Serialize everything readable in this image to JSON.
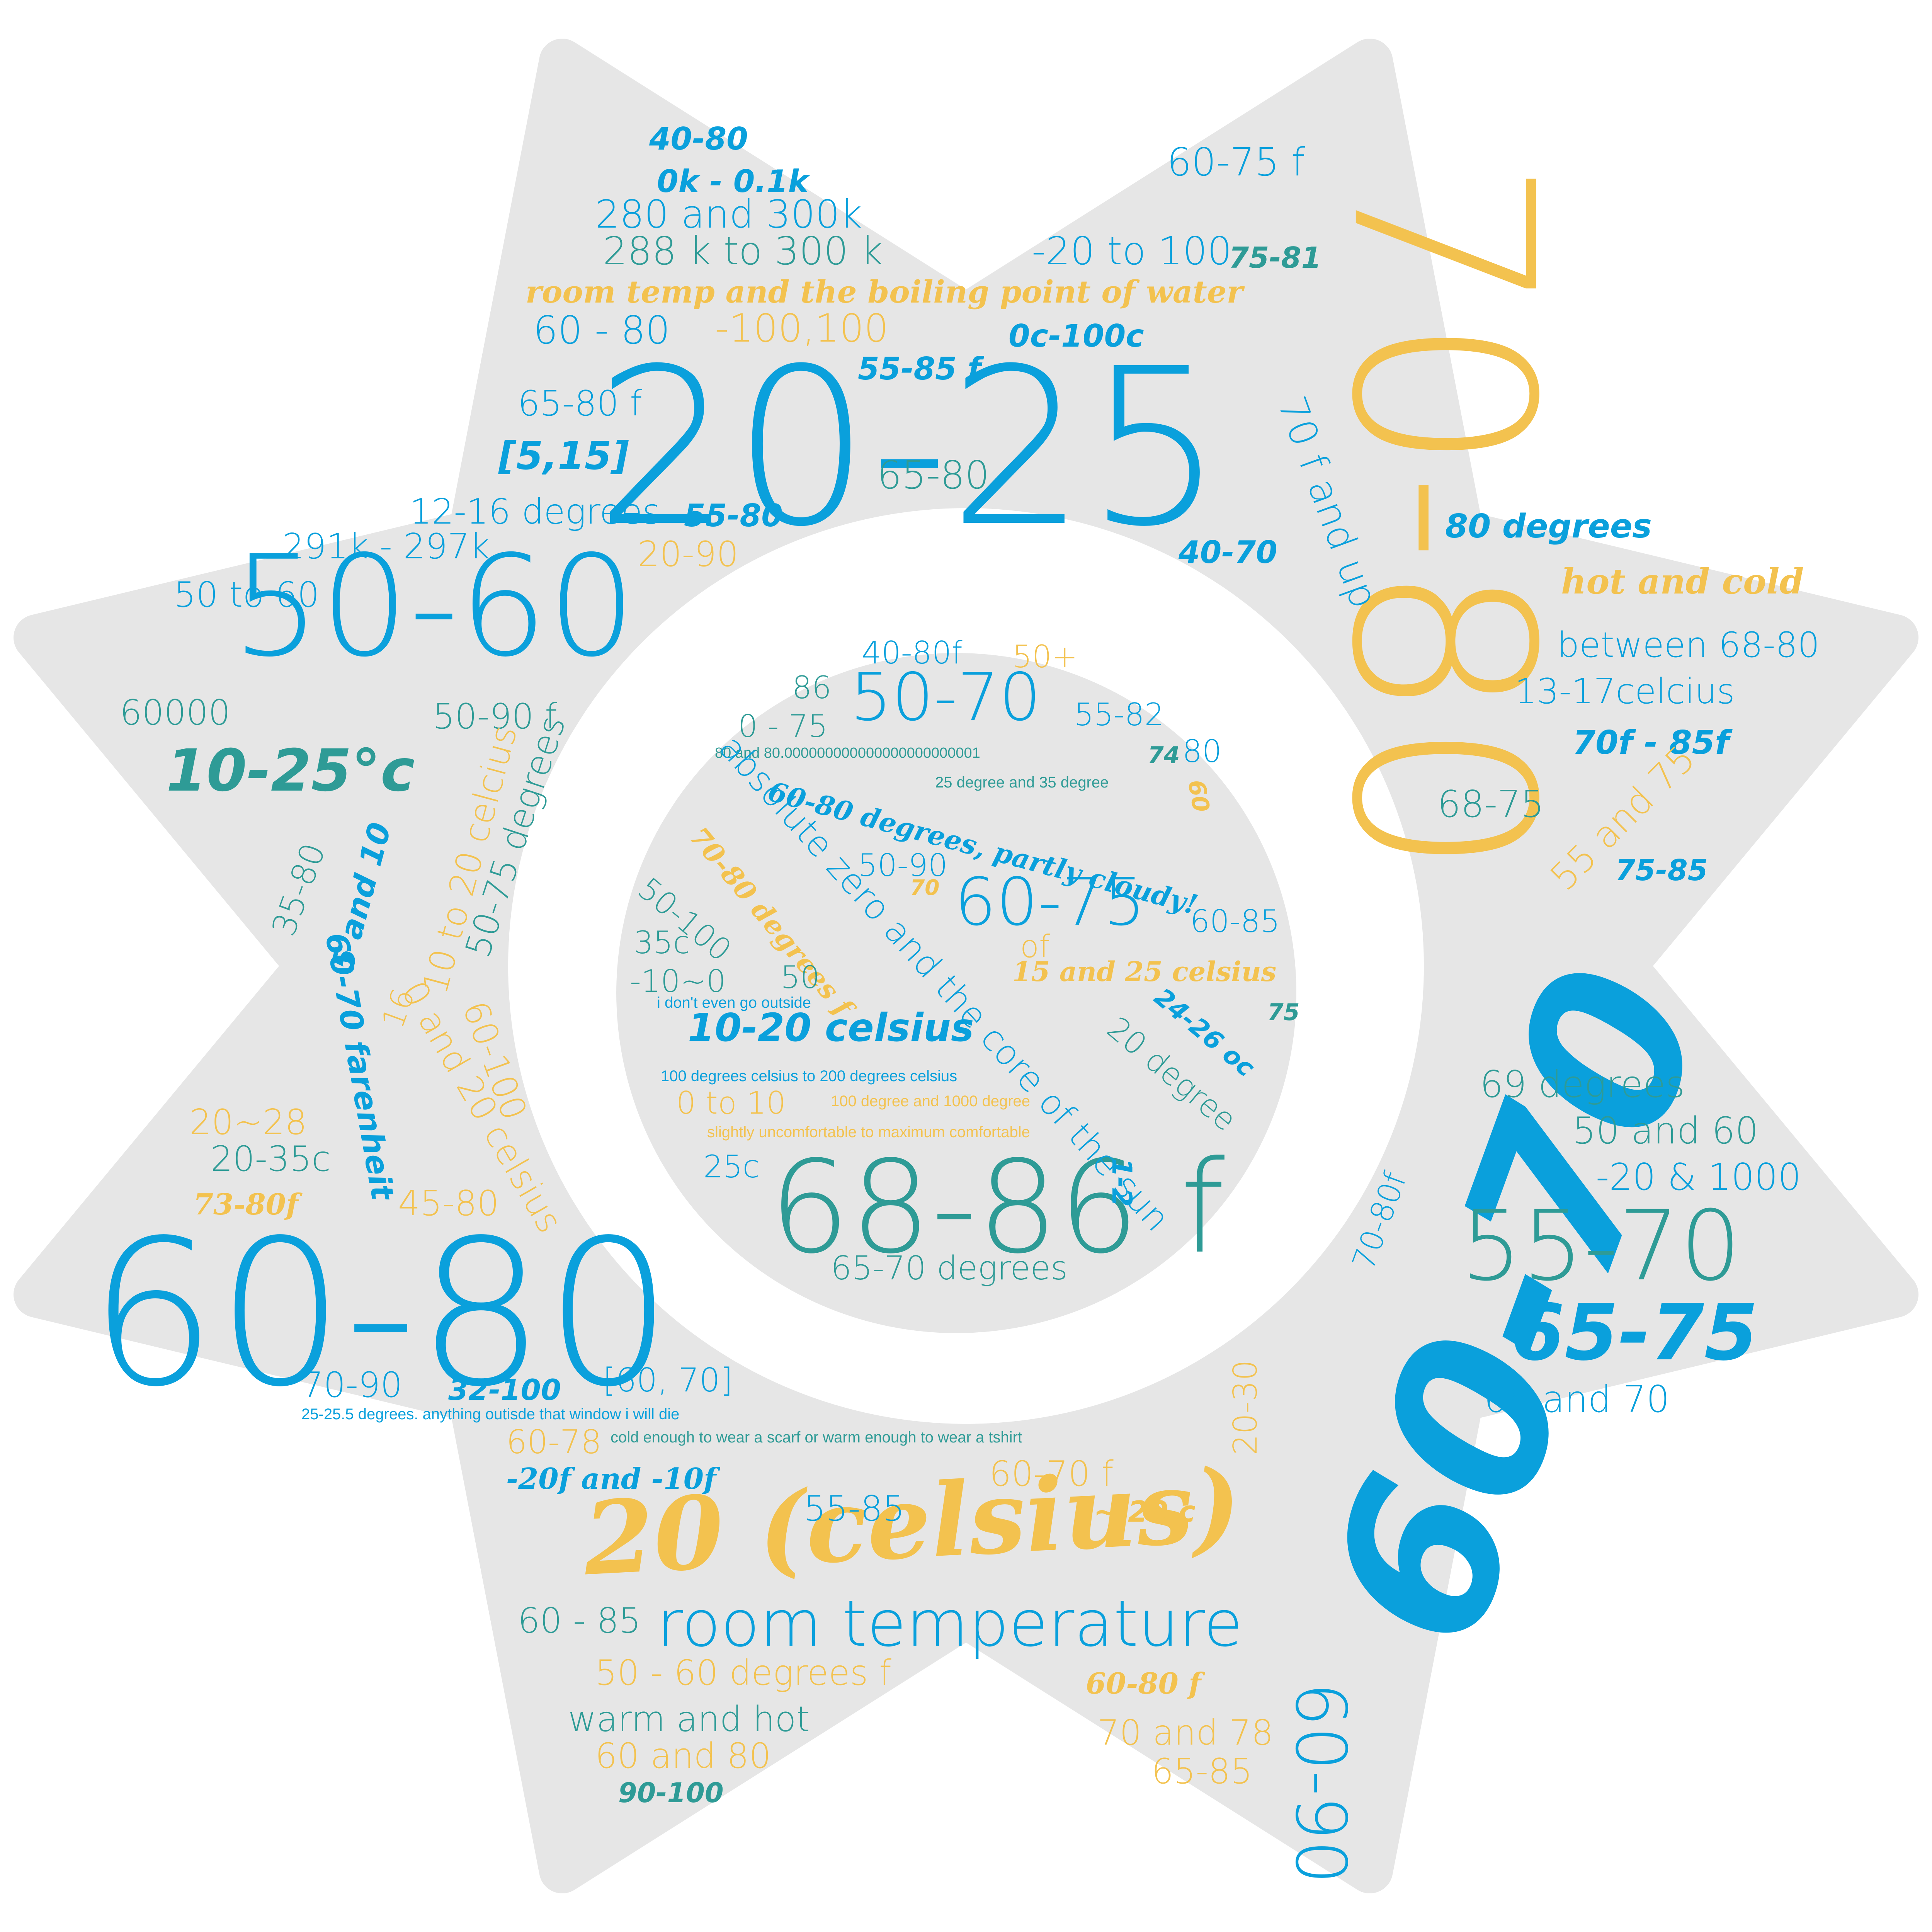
{
  "colors": {
    "background": "#ffffff",
    "shape_fill": "#e6e6e6",
    "blue": "#0aa0dc",
    "teal": "#2e9b96",
    "yellow": "#f3c24f"
  },
  "shape": "eight-pointed star with ring cutout",
  "words": [
    "70-80",
    "20-25",
    "60-70",
    "60-80",
    "50-60",
    "68-86 f",
    "20 (celsius)",
    "room temperature",
    "60-90",
    "55-70",
    "65-75",
    "40-80",
    "0k - 0.1k",
    "280 and 300k",
    "288 k to 300 k",
    "room temp and the boiling point of water",
    "60 - 80",
    "-100,100",
    "55-85 f",
    "0c-100c",
    "60-75 f",
    "-20 to 100",
    "75-81",
    "65-80 f",
    "[5,15]",
    "65-80",
    "55-80",
    "40-70",
    "70 f and up",
    "12-16 degrees",
    "291k - 297k",
    "20-90",
    "50 to 60",
    "80 degrees",
    "hot and cold",
    "between 68-80",
    "13-17celcius",
    "70f - 85f",
    "68-75",
    "55 and 75",
    "75-85",
    "60000",
    "50-90 f",
    "10-25°c",
    "35-80",
    "5 and 10",
    "10 to 20 celcius",
    "50-75 degrees",
    "60-70 farenheit",
    "0 and 20 celsius",
    "60-100",
    "16",
    "20~28",
    "20-35c",
    "73-80f",
    "45-80",
    "40-80f",
    "50+",
    "86",
    "50-70",
    "55-82",
    "0 - 75",
    "80 and 80.000000000000000000000001",
    "74",
    "80",
    "25 degree and 35 degree",
    "60",
    "60-80 degrees, partly cloudy!",
    "absolute zero and the core of the sun",
    "50-90",
    "70",
    "70-80 degrees f",
    "60-75",
    "60-85",
    "50-100",
    "35c",
    "of",
    "-10~0",
    "50",
    "15 and 25 celsius",
    "24-26 oc",
    "75",
    "i don't even go outside",
    "10-20 celsius",
    "20 degree",
    "100 degrees celsius to 200 degrees celsius",
    "0 to 10",
    "100 degree and 1000 degree",
    "slightly uncomfortable to maximum comfortable",
    "25c",
    "1-2",
    "65-70 degrees",
    "69 degrees",
    "50 and 60",
    "-20 & 1000",
    "70-80f",
    "68 and 70",
    "70-90",
    "32-100",
    "[60, 70]",
    "25-25.5 degrees. anything outisde that window i will die",
    "60-78",
    "cold enough to wear a scarf or warm enough to wear a tshirt",
    "20-30",
    "-20f and -10f",
    "60-70 f",
    "55-85",
    "~ 20 c",
    "60 - 85",
    "50 - 60 degrees f",
    "60-80 f",
    "warm and hot",
    "70 and 78",
    "60 and 80",
    "65-85",
    "90-100"
  ]
}
